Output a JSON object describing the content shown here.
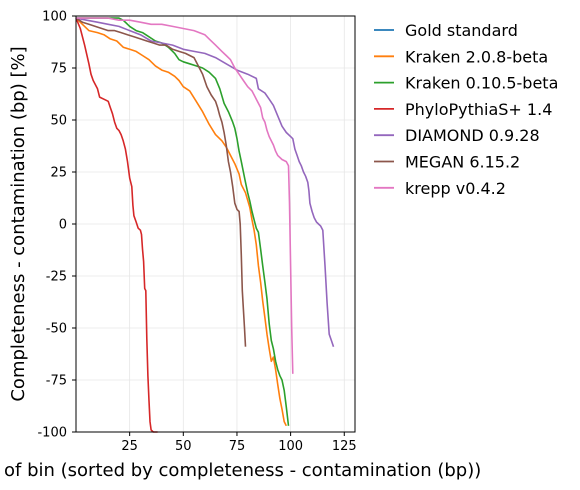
{
  "chart_data": {
    "type": "line",
    "xlabel": "Index of bin (sorted by completeness - contamination (bp))",
    "ylabel": "Completeness - contamination (bp) [%]",
    "xlim": [
      0,
      130
    ],
    "ylim": [
      -100,
      100
    ],
    "xticks": [
      25,
      50,
      75,
      100,
      125
    ],
    "yticks": [
      -100,
      -75,
      -50,
      -25,
      0,
      25,
      50,
      75,
      100
    ],
    "grid": true,
    "legend_position": "outside-top-right",
    "series": [
      {
        "name": "Gold standard",
        "color": "#1f77b4",
        "points": []
      },
      {
        "name": "Kraken 2.0.8-beta",
        "color": "#ff7f0e",
        "points": [
          [
            0,
            99
          ],
          [
            3,
            96
          ],
          [
            6,
            93
          ],
          [
            10,
            92
          ],
          [
            13,
            91
          ],
          [
            16,
            89
          ],
          [
            19,
            88
          ],
          [
            22,
            85
          ],
          [
            25,
            84
          ],
          [
            28,
            83
          ],
          [
            31,
            81
          ],
          [
            34,
            79
          ],
          [
            37,
            76
          ],
          [
            40,
            74
          ],
          [
            43,
            73
          ],
          [
            46,
            71
          ],
          [
            48,
            69
          ],
          [
            50,
            66
          ],
          [
            53,
            64
          ],
          [
            56,
            59
          ],
          [
            59,
            54
          ],
          [
            62,
            48
          ],
          [
            65,
            43
          ],
          [
            68,
            40
          ],
          [
            70,
            37
          ],
          [
            72,
            33
          ],
          [
            74,
            29
          ],
          [
            76,
            24
          ],
          [
            77,
            19
          ],
          [
            79,
            15
          ],
          [
            81,
            8
          ],
          [
            82,
            2
          ],
          [
            83,
            -3
          ],
          [
            84,
            -10
          ],
          [
            85,
            -20
          ],
          [
            86,
            -28
          ],
          [
            87,
            -37
          ],
          [
            88,
            -45
          ],
          [
            89,
            -53
          ],
          [
            90,
            -60
          ],
          [
            91,
            -66
          ],
          [
            92,
            -64
          ],
          [
            93,
            -70
          ],
          [
            94,
            -77
          ],
          [
            95,
            -84
          ],
          [
            96,
            -89
          ],
          [
            97,
            -95
          ],
          [
            98,
            -97
          ]
        ]
      },
      {
        "name": "Kraken 0.10.5-beta",
        "color": "#2ca02c",
        "points": [
          [
            0,
            99
          ],
          [
            5,
            99
          ],
          [
            10,
            99
          ],
          [
            15,
            99
          ],
          [
            20,
            99
          ],
          [
            22,
            98
          ],
          [
            25,
            95
          ],
          [
            28,
            93
          ],
          [
            31,
            92
          ],
          [
            34,
            90
          ],
          [
            37,
            88
          ],
          [
            40,
            87
          ],
          [
            43,
            85
          ],
          [
            46,
            82
          ],
          [
            48,
            79
          ],
          [
            50,
            78
          ],
          [
            53,
            77
          ],
          [
            56,
            76
          ],
          [
            59,
            75
          ],
          [
            62,
            73
          ],
          [
            65,
            70
          ],
          [
            67,
            65
          ],
          [
            69,
            58
          ],
          [
            71,
            54
          ],
          [
            73,
            49
          ],
          [
            74,
            46
          ],
          [
            75,
            41
          ],
          [
            76,
            35
          ],
          [
            77,
            30
          ],
          [
            78,
            25
          ],
          [
            79,
            20
          ],
          [
            80,
            15
          ],
          [
            81,
            11
          ],
          [
            82,
            6
          ],
          [
            83,
            2
          ],
          [
            84,
            -2
          ],
          [
            85,
            -4
          ],
          [
            86,
            -12
          ],
          [
            87,
            -20
          ],
          [
            88,
            -28
          ],
          [
            89,
            -36
          ],
          [
            90,
            -48
          ],
          [
            91,
            -56
          ],
          [
            92,
            -60
          ],
          [
            93,
            -66
          ],
          [
            94,
            -70
          ],
          [
            95,
            -73
          ],
          [
            96,
            -75
          ],
          [
            97,
            -80
          ],
          [
            98,
            -88
          ],
          [
            99,
            -97
          ]
        ]
      },
      {
        "name": "PhyloPythiaS+ 1.4",
        "color": "#d62728",
        "points": [
          [
            0,
            99
          ],
          [
            2,
            94
          ],
          [
            4,
            86
          ],
          [
            6,
            77
          ],
          [
            7,
            72
          ],
          [
            8,
            69
          ],
          [
            10,
            65
          ],
          [
            11,
            61
          ],
          [
            13,
            60
          ],
          [
            15,
            59
          ],
          [
            16,
            56
          ],
          [
            17,
            53
          ],
          [
            18,
            49
          ],
          [
            19,
            46
          ],
          [
            20,
            45
          ],
          [
            21,
            43
          ],
          [
            22,
            40
          ],
          [
            23,
            36
          ],
          [
            24,
            30
          ],
          [
            25,
            22
          ],
          [
            26,
            18
          ],
          [
            26.5,
            9
          ],
          [
            27,
            4
          ],
          [
            28,
            1
          ],
          [
            29,
            -2
          ],
          [
            30,
            -3
          ],
          [
            30.5,
            -5
          ],
          [
            31,
            -12
          ],
          [
            31.5,
            -18
          ],
          [
            32,
            -31
          ],
          [
            32.5,
            -32
          ],
          [
            33,
            -55
          ],
          [
            33.5,
            -73
          ],
          [
            34,
            -85
          ],
          [
            34.5,
            -95
          ],
          [
            35,
            -99
          ],
          [
            36,
            -100
          ],
          [
            37,
            -100
          ],
          [
            38,
            -100
          ]
        ]
      },
      {
        "name": "DIAMOND 0.9.28",
        "color": "#9467bd",
        "points": [
          [
            0,
            99
          ],
          [
            5,
            98
          ],
          [
            10,
            97
          ],
          [
            15,
            96
          ],
          [
            20,
            95
          ],
          [
            25,
            93
          ],
          [
            30,
            91
          ],
          [
            35,
            88
          ],
          [
            40,
            87
          ],
          [
            45,
            86
          ],
          [
            50,
            84
          ],
          [
            55,
            83
          ],
          [
            60,
            82
          ],
          [
            65,
            80
          ],
          [
            70,
            77
          ],
          [
            75,
            74
          ],
          [
            80,
            72
          ],
          [
            84,
            70
          ],
          [
            85,
            65
          ],
          [
            88,
            63
          ],
          [
            90,
            60
          ],
          [
            92,
            57
          ],
          [
            94,
            52
          ],
          [
            96,
            47
          ],
          [
            98,
            44
          ],
          [
            100,
            42
          ],
          [
            101,
            41
          ],
          [
            102,
            36
          ],
          [
            103,
            33
          ],
          [
            104,
            30
          ],
          [
            105,
            28
          ],
          [
            106,
            25
          ],
          [
            107,
            23
          ],
          [
            108,
            20
          ],
          [
            108.5,
            16
          ],
          [
            109,
            10
          ],
          [
            110,
            6
          ],
          [
            111,
            3
          ],
          [
            112,
            1
          ],
          [
            113,
            0
          ],
          [
            114,
            -1
          ],
          [
            115,
            -3
          ],
          [
            116,
            -20
          ],
          [
            117,
            -38
          ],
          [
            118,
            -53
          ],
          [
            119,
            -56
          ],
          [
            120,
            -59
          ]
        ]
      },
      {
        "name": "MEGAN 6.15.2",
        "color": "#8c564b",
        "points": [
          [
            0,
            99
          ],
          [
            3,
            97
          ],
          [
            6,
            96
          ],
          [
            9,
            95
          ],
          [
            12,
            94
          ],
          [
            15,
            93
          ],
          [
            18,
            93
          ],
          [
            21,
            92
          ],
          [
            24,
            91
          ],
          [
            27,
            90
          ],
          [
            30,
            89
          ],
          [
            33,
            88
          ],
          [
            36,
            87
          ],
          [
            39,
            86
          ],
          [
            42,
            86
          ],
          [
            45,
            84
          ],
          [
            48,
            83
          ],
          [
            51,
            82
          ],
          [
            53,
            81
          ],
          [
            55,
            80
          ],
          [
            57,
            76
          ],
          [
            59,
            72
          ],
          [
            61,
            66
          ],
          [
            63,
            62
          ],
          [
            65,
            59
          ],
          [
            66,
            56
          ],
          [
            67,
            52
          ],
          [
            68,
            49
          ],
          [
            69,
            44
          ],
          [
            70,
            38
          ],
          [
            71,
            30
          ],
          [
            72,
            25
          ],
          [
            73,
            18
          ],
          [
            74,
            10
          ],
          [
            75,
            7
          ],
          [
            76,
            6
          ],
          [
            76.5,
            0
          ],
          [
            77,
            -15
          ],
          [
            77.5,
            -32
          ],
          [
            78,
            -41
          ],
          [
            78.5,
            -50
          ],
          [
            79,
            -59
          ]
        ]
      },
      {
        "name": "krepp v0.4.2",
        "color": "#e377c2",
        "points": [
          [
            0,
            99
          ],
          [
            5,
            99
          ],
          [
            10,
            99
          ],
          [
            15,
            99
          ],
          [
            20,
            98
          ],
          [
            25,
            98
          ],
          [
            30,
            97
          ],
          [
            35,
            96
          ],
          [
            40,
            96
          ],
          [
            45,
            95
          ],
          [
            50,
            94
          ],
          [
            55,
            93
          ],
          [
            60,
            91
          ],
          [
            62,
            89
          ],
          [
            65,
            86
          ],
          [
            68,
            83
          ],
          [
            70,
            81
          ],
          [
            72,
            79
          ],
          [
            74,
            75
          ],
          [
            76,
            72
          ],
          [
            78,
            69
          ],
          [
            80,
            66
          ],
          [
            82,
            64
          ],
          [
            84,
            60
          ],
          [
            86,
            56
          ],
          [
            87,
            51
          ],
          [
            88,
            49
          ],
          [
            89,
            45
          ],
          [
            90,
            42
          ],
          [
            92,
            38
          ],
          [
            93,
            35
          ],
          [
            94,
            33
          ],
          [
            96,
            31
          ],
          [
            98,
            30
          ],
          [
            99,
            28
          ],
          [
            99.5,
            10
          ],
          [
            100,
            -20
          ],
          [
            100.5,
            -50
          ],
          [
            101,
            -72
          ]
        ]
      }
    ]
  }
}
